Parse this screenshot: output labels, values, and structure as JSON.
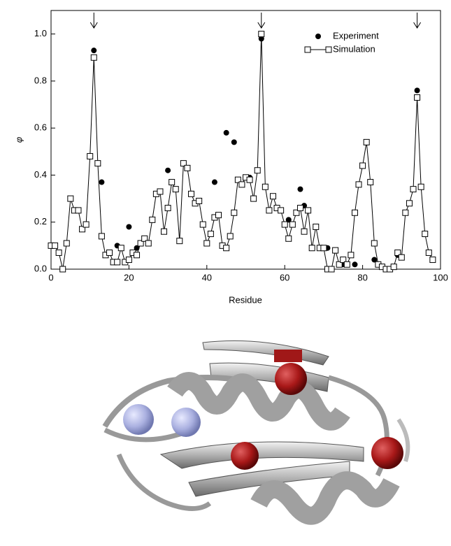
{
  "chart_data": {
    "type": "scatter",
    "xlabel": "Residue",
    "ylabel": "φ",
    "xlim": [
      0,
      100
    ],
    "ylim": [
      0,
      1.1
    ],
    "xticks": [
      0,
      20,
      40,
      60,
      80,
      100
    ],
    "yticks": [
      {
        "value": 0,
        "label": "0.0"
      },
      0.2,
      0.4,
      0.6,
      0.8,
      {
        "value": 1,
        "label": "1.0"
      }
    ],
    "arrows": [
      11,
      54,
      94
    ],
    "legend": "upper right",
    "series": [
      {
        "name": "Experiment",
        "color": "#000000",
        "marker": "circle",
        "line": false,
        "x": [
          11,
          13,
          17,
          20,
          22,
          30,
          42,
          45,
          47,
          51,
          54,
          61,
          64,
          65,
          71,
          73,
          75,
          78,
          83,
          89,
          94
        ],
        "values": [
          0.93,
          0.37,
          0.1,
          0.18,
          0.09,
          0.42,
          0.37,
          0.58,
          0.54,
          0.39,
          0.98,
          0.21,
          0.34,
          0.27,
          0.09,
          0.08,
          0.02,
          0.02,
          0.04,
          0.06,
          0.76
        ]
      },
      {
        "name": "Simulation",
        "color": "#000000",
        "marker": "square",
        "line": true,
        "x": [
          0,
          1,
          2,
          3,
          4,
          5,
          6,
          7,
          8,
          9,
          10,
          11,
          12,
          13,
          14,
          15,
          16,
          17,
          18,
          19,
          20,
          21,
          22,
          23,
          24,
          25,
          26,
          27,
          28,
          29,
          30,
          31,
          32,
          33,
          34,
          35,
          36,
          37,
          38,
          39,
          40,
          41,
          42,
          43,
          44,
          45,
          46,
          47,
          48,
          49,
          50,
          51,
          52,
          53,
          54,
          55,
          56,
          57,
          58,
          59,
          60,
          61,
          62,
          63,
          64,
          65,
          66,
          67,
          68,
          69,
          70,
          71,
          72,
          73,
          74,
          75,
          76,
          77,
          78,
          79,
          80,
          81,
          82,
          83,
          84,
          85,
          86,
          87,
          88,
          89,
          90,
          91,
          92,
          93,
          94,
          95,
          96,
          97,
          98
        ],
        "values": [
          0.1,
          0.1,
          0.07,
          0.0,
          0.11,
          0.3,
          0.25,
          0.25,
          0.17,
          0.19,
          0.48,
          0.9,
          0.45,
          0.14,
          0.06,
          0.07,
          0.03,
          0.03,
          0.09,
          0.03,
          0.04,
          0.07,
          0.06,
          0.11,
          0.13,
          0.11,
          0.21,
          0.32,
          0.33,
          0.16,
          0.26,
          0.37,
          0.34,
          0.12,
          0.45,
          0.43,
          0.32,
          0.28,
          0.29,
          0.19,
          0.11,
          0.15,
          0.22,
          0.23,
          0.1,
          0.09,
          0.14,
          0.24,
          0.38,
          0.36,
          0.39,
          0.38,
          0.3,
          0.42,
          1.0,
          0.35,
          0.25,
          0.31,
          0.26,
          0.25,
          0.19,
          0.13,
          0.19,
          0.24,
          0.26,
          0.16,
          0.25,
          0.09,
          0.18,
          0.09,
          0.09,
          0.0,
          0.0,
          0.08,
          0.02,
          0.04,
          0.02,
          0.06,
          0.24,
          0.36,
          0.44,
          0.54,
          0.37,
          0.11,
          0.02,
          0.01,
          0.0,
          0.0,
          0.01,
          0.07,
          0.05,
          0.24,
          0.28,
          0.34,
          0.73,
          0.35,
          0.15,
          0.07,
          0.04
        ]
      }
    ]
  }
}
